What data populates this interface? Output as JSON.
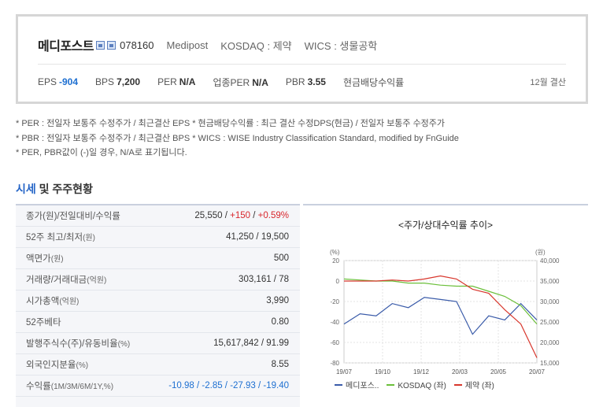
{
  "summary": {
    "company_name": "메디포스트",
    "code": "078160",
    "english_name": "Medipost",
    "market": "KOSDAQ : 제약",
    "wics": "WICS : 생물공학",
    "metrics": [
      {
        "label": "EPS",
        "value": "-904",
        "negative": true
      },
      {
        "label": "BPS",
        "value": "7,200",
        "negative": false
      },
      {
        "label": "PER",
        "value": "N/A",
        "negative": false
      },
      {
        "label": "업종PER",
        "value": "N/A",
        "negative": false
      },
      {
        "label": "PBR",
        "value": "3.55",
        "negative": false
      },
      {
        "label": "현금배당수익률",
        "value": "",
        "negative": false
      }
    ],
    "fiscal": "12월 결산"
  },
  "notes": [
    "* PER : 전일자 보통주 수정주가 / 최근결산 EPS * 현금배당수익률 : 최근 결산 수정DPS(현금) / 전일자 보통주 수정주가",
    "* PBR : 전일자 보통주 수정주가 / 최근결산 BPS * WICS : WISE Industry Classification Standard, modified by FnGuide",
    "* PER, PBR값이 (-)일 경우, N/A로 표기됩니다."
  ],
  "section": {
    "title_highlight": "시세",
    "title_rest": " 및 주주현황"
  },
  "quote_table": [
    {
      "label": "종가(원)/전일대비/수익률",
      "unit": "",
      "value_parts": [
        {
          "text": "25,550 / ",
          "cls": ""
        },
        {
          "text": "+150",
          "cls": "up"
        },
        {
          "text": " / ",
          "cls": ""
        },
        {
          "text": "+0.59%",
          "cls": "up"
        }
      ]
    },
    {
      "label": "52주 최고/최저",
      "unit": "(원)",
      "value_parts": [
        {
          "text": "41,250 / 19,500",
          "cls": ""
        }
      ]
    },
    {
      "label": "액면가",
      "unit": "(원)",
      "value_parts": [
        {
          "text": "500",
          "cls": ""
        }
      ]
    },
    {
      "label": "거래량/거래대금",
      "unit": "(억원)",
      "value_parts": [
        {
          "text": "303,161 / 78",
          "cls": ""
        }
      ]
    },
    {
      "label": "시가총액",
      "unit": "(억원)",
      "value_parts": [
        {
          "text": "3,990",
          "cls": ""
        }
      ]
    },
    {
      "label": "52주베타",
      "unit": "",
      "value_parts": [
        {
          "text": "0.80",
          "cls": ""
        }
      ]
    },
    {
      "label": "발행주식수(주)/유동비율",
      "unit": "(%)",
      "value_parts": [
        {
          "text": "15,617,842 / 91.99",
          "cls": ""
        }
      ]
    },
    {
      "label": "외국인지분율",
      "unit": "(%)",
      "value_parts": [
        {
          "text": "8.55",
          "cls": ""
        }
      ]
    },
    {
      "label": "수익률",
      "unit": "(1M/3M/6M/1Y,%)",
      "value_parts": [
        {
          "text": "-10.98 / -2.85 / -27.93 / -19.40",
          "cls": "neg"
        }
      ]
    }
  ],
  "chart_data": {
    "type": "line",
    "title": "<주가/상대수익률 추이>",
    "left_unit": "(%)",
    "right_unit": "(원)",
    "x_ticks": [
      "19/07",
      "19/10",
      "19/12",
      "20/03",
      "20/05",
      "20/07"
    ],
    "y_left_ticks": [
      20,
      0,
      -20,
      -40,
      -60,
      -80
    ],
    "y_left_range": [
      -80,
      20
    ],
    "y_right_ticks": [
      "40,000",
      "35,000",
      "30,000",
      "25,000",
      "20,000",
      "15,000"
    ],
    "y_right_range": [
      15000,
      40000
    ],
    "grid": true,
    "legend_position": "bottom",
    "x": [
      "19/07",
      "19/08",
      "19/09",
      "19/10",
      "19/11",
      "19/12",
      "20/01",
      "20/02",
      "20/03",
      "20/04",
      "20/05",
      "20/06",
      "20/07"
    ],
    "series": [
      {
        "name": "메디포스..",
        "axis": "right",
        "color": "#3a5ba9",
        "values": [
          24500,
          27000,
          26500,
          29500,
          28500,
          31000,
          30500,
          30000,
          22000,
          26500,
          25500,
          29500,
          25500
        ]
      },
      {
        "name": "KOSDAQ (좌)",
        "axis": "left",
        "color": "#6bbf3a",
        "values": [
          2,
          1,
          0,
          0,
          -2,
          -2,
          -4,
          -5,
          -5,
          -10,
          -15,
          -24,
          -42
        ]
      },
      {
        "name": "제약 (좌)",
        "axis": "left",
        "color": "#d8362c",
        "values": [
          0,
          0,
          0,
          1,
          0,
          2,
          5,
          2,
          -8,
          -12,
          -28,
          -42,
          -75
        ]
      }
    ]
  }
}
